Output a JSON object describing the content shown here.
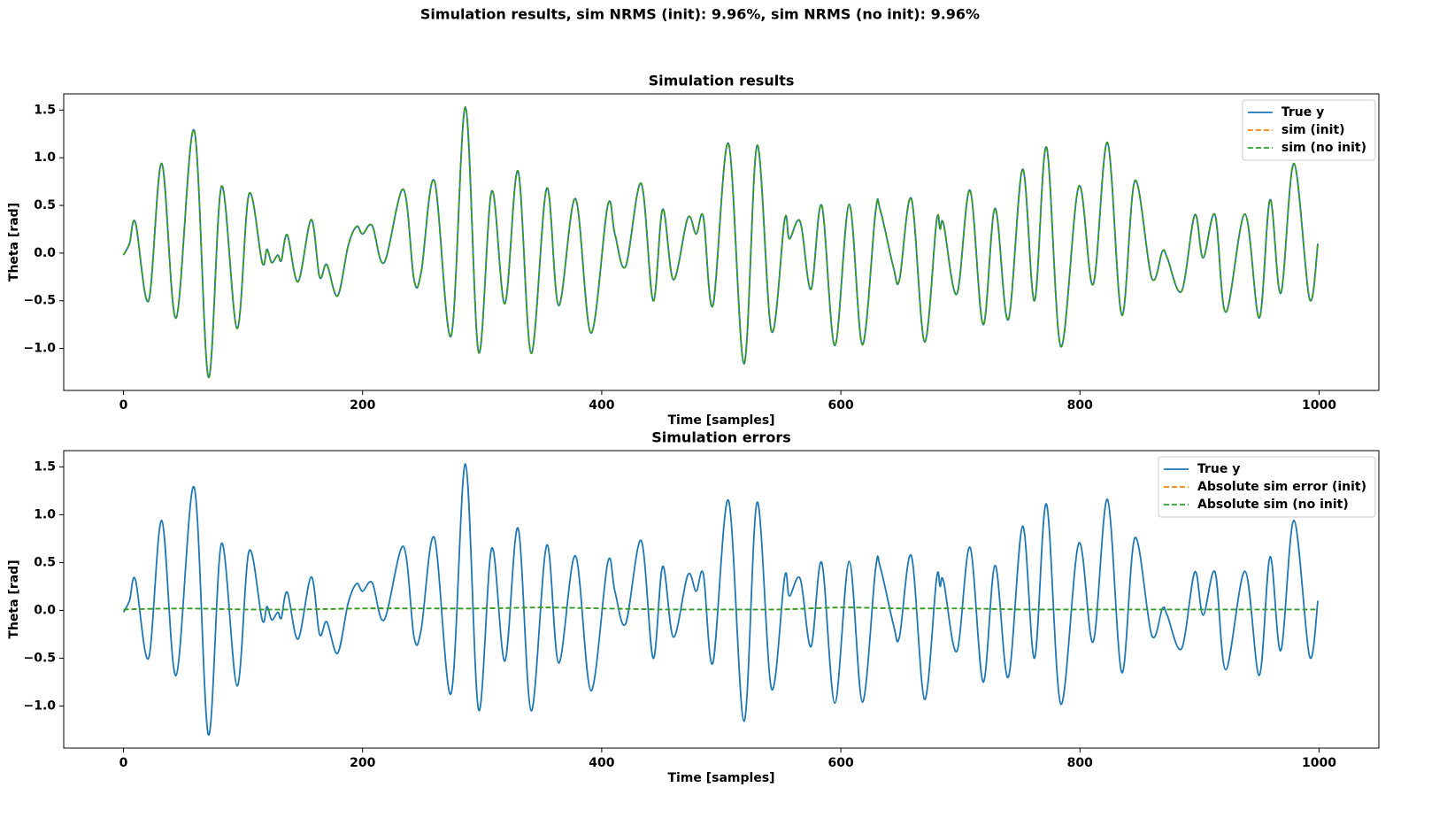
{
  "title": "Simulation results, sim NRMS (init): 9.96%, sim NRMS (no init): 9.96%",
  "chart_data": [
    {
      "type": "line",
      "title": "Simulation results",
      "xlabel": "Time [samples]",
      "ylabel": "Theta [rad]",
      "xlim": [
        -50,
        1050
      ],
      "ylim": [
        -1.44,
        1.67
      ],
      "xticks": [
        0,
        200,
        400,
        600,
        800,
        1000
      ],
      "yticks": [
        {
          "value": -1.0,
          "label": "−1.0"
        },
        {
          "value": -0.5,
          "label": "−0.5"
        },
        {
          "value": 0,
          "label": "0.0"
        },
        {
          "value": 0.5,
          "label": "0.5"
        },
        {
          "value": 1.0,
          "label": "1.0"
        },
        {
          "value": 1.5,
          "label": "1.5"
        }
      ],
      "legend": "upper right",
      "x": [
        0,
        5,
        10,
        21,
        32,
        44,
        59,
        71,
        82,
        95,
        105,
        116,
        120,
        124,
        129,
        132,
        137,
        146,
        157,
        164,
        170,
        179,
        188,
        195,
        200,
        208,
        218,
        234,
        243,
        249,
        260,
        274,
        286,
        297,
        308,
        319,
        330,
        341,
        354,
        364,
        378,
        391,
        405,
        411,
        420,
        433,
        443,
        451,
        460,
        472,
        479,
        485,
        493,
        506,
        519,
        530,
        542,
        553,
        557,
        566,
        575,
        584,
        595,
        607,
        618,
        629,
        633,
        644,
        649,
        659,
        670,
        680,
        683,
        686,
        697,
        708,
        719,
        729,
        740,
        752,
        762,
        772,
        784,
        799,
        811,
        823,
        835,
        846,
        860,
        869,
        873,
        885,
        896,
        903,
        913,
        922,
        938,
        950,
        959,
        968,
        979,
        992,
        999
      ],
      "series": [
        {
          "name": "True y",
          "color": "#1f77b4",
          "dash": false,
          "values": [
            -0.02,
            0.1,
            0.32,
            -0.5,
            0.94,
            -0.68,
            1.29,
            -1.3,
            0.7,
            -0.79,
            0.62,
            -0.1,
            0.04,
            -0.1,
            -0.02,
            -0.08,
            0.19,
            -0.3,
            0.35,
            -0.25,
            -0.12,
            -0.45,
            0.08,
            0.28,
            0.2,
            0.29,
            -0.1,
            0.67,
            -0.28,
            -0.2,
            0.76,
            -0.87,
            1.53,
            -1.04,
            0.65,
            -0.53,
            0.86,
            -1.05,
            0.68,
            -0.55,
            0.57,
            -0.84,
            0.5,
            0.2,
            -0.14,
            0.73,
            -0.5,
            0.46,
            -0.28,
            0.37,
            0.2,
            0.38,
            -0.55,
            1.15,
            -1.16,
            1.13,
            -0.82,
            0.35,
            0.15,
            0.33,
            -0.38,
            0.5,
            -0.97,
            0.51,
            -0.96,
            0.43,
            0.45,
            -0.15,
            -0.28,
            0.57,
            -0.93,
            0.33,
            0.25,
            0.3,
            -0.43,
            0.66,
            -0.75,
            0.47,
            -0.7,
            0.88,
            -0.5,
            1.11,
            -0.98,
            0.7,
            -0.33,
            1.16,
            -0.65,
            0.76,
            -0.26,
            0.02,
            -0.05,
            -0.4,
            0.4,
            -0.05,
            0.4,
            -0.62,
            0.41,
            -0.68,
            0.56,
            -0.42,
            0.94,
            -0.48,
            0.1
          ]
        },
        {
          "name": "sim (init)",
          "color": "#ff7f0e",
          "dash": true,
          "values": [
            -0.02,
            0.1,
            0.32,
            -0.5,
            0.94,
            -0.68,
            1.29,
            -1.3,
            0.7,
            -0.79,
            0.62,
            -0.1,
            0.04,
            -0.1,
            -0.02,
            -0.08,
            0.19,
            -0.3,
            0.35,
            -0.25,
            -0.12,
            -0.45,
            0.08,
            0.28,
            0.2,
            0.29,
            -0.1,
            0.67,
            -0.28,
            -0.2,
            0.76,
            -0.87,
            1.53,
            -1.04,
            0.65,
            -0.53,
            0.86,
            -1.05,
            0.68,
            -0.55,
            0.57,
            -0.84,
            0.5,
            0.2,
            -0.14,
            0.73,
            -0.5,
            0.46,
            -0.28,
            0.37,
            0.2,
            0.38,
            -0.55,
            1.15,
            -1.16,
            1.13,
            -0.82,
            0.35,
            0.15,
            0.33,
            -0.38,
            0.5,
            -0.97,
            0.51,
            -0.96,
            0.43,
            0.45,
            -0.15,
            -0.28,
            0.57,
            -0.93,
            0.33,
            0.25,
            0.3,
            -0.43,
            0.66,
            -0.75,
            0.47,
            -0.7,
            0.88,
            -0.5,
            1.11,
            -0.98,
            0.7,
            -0.33,
            1.16,
            -0.65,
            0.76,
            -0.26,
            0.02,
            -0.05,
            -0.4,
            0.4,
            -0.05,
            0.4,
            -0.62,
            0.41,
            -0.68,
            0.56,
            -0.42,
            0.94,
            -0.48,
            0.1
          ]
        },
        {
          "name": "sim (no init)",
          "color": "#2ca02c",
          "dash": true,
          "values": [
            -0.02,
            0.1,
            0.32,
            -0.5,
            0.94,
            -0.68,
            1.29,
            -1.3,
            0.7,
            -0.79,
            0.62,
            -0.1,
            0.04,
            -0.1,
            -0.02,
            -0.08,
            0.19,
            -0.3,
            0.35,
            -0.25,
            -0.12,
            -0.45,
            0.08,
            0.28,
            0.2,
            0.29,
            -0.1,
            0.67,
            -0.28,
            -0.2,
            0.76,
            -0.87,
            1.53,
            -1.04,
            0.65,
            -0.53,
            0.86,
            -1.05,
            0.68,
            -0.55,
            0.57,
            -0.84,
            0.5,
            0.2,
            -0.14,
            0.73,
            -0.5,
            0.46,
            -0.28,
            0.37,
            0.2,
            0.38,
            -0.55,
            1.15,
            -1.16,
            1.13,
            -0.82,
            0.35,
            0.15,
            0.33,
            -0.38,
            0.5,
            -0.97,
            0.51,
            -0.96,
            0.43,
            0.45,
            -0.15,
            -0.28,
            0.57,
            -0.93,
            0.33,
            0.25,
            0.3,
            -0.43,
            0.66,
            -0.75,
            0.47,
            -0.7,
            0.88,
            -0.5,
            1.11,
            -0.98,
            0.7,
            -0.33,
            1.16,
            -0.65,
            0.76,
            -0.26,
            0.02,
            -0.05,
            -0.4,
            0.4,
            -0.05,
            0.4,
            -0.62,
            0.41,
            -0.68,
            0.56,
            -0.42,
            0.94,
            -0.48,
            0.1
          ]
        }
      ]
    },
    {
      "type": "line",
      "title": "Simulation errors",
      "xlabel": "Time [samples]",
      "ylabel": "Theta [rad]",
      "xlim": [
        -50,
        1050
      ],
      "ylim": [
        -1.44,
        1.67
      ],
      "xticks": [
        0,
        200,
        400,
        600,
        800,
        1000
      ],
      "yticks": [
        {
          "value": -1.0,
          "label": "−1.0"
        },
        {
          "value": -0.5,
          "label": "−0.5"
        },
        {
          "value": 0,
          "label": "0.0"
        },
        {
          "value": 0.5,
          "label": "0.5"
        },
        {
          "value": 1.0,
          "label": "1.0"
        },
        {
          "value": 1.5,
          "label": "1.5"
        }
      ],
      "legend": "upper right",
      "x": [
        0,
        5,
        10,
        21,
        32,
        44,
        59,
        71,
        82,
        95,
        105,
        116,
        120,
        124,
        129,
        132,
        137,
        146,
        157,
        164,
        170,
        179,
        188,
        195,
        200,
        208,
        218,
        234,
        243,
        249,
        260,
        274,
        286,
        297,
        308,
        319,
        330,
        341,
        354,
        364,
        378,
        391,
        405,
        411,
        420,
        433,
        443,
        451,
        460,
        472,
        479,
        485,
        493,
        506,
        519,
        530,
        542,
        553,
        557,
        566,
        575,
        584,
        595,
        607,
        618,
        629,
        633,
        644,
        649,
        659,
        670,
        680,
        683,
        686,
        697,
        708,
        719,
        729,
        740,
        752,
        762,
        772,
        784,
        799,
        811,
        823,
        835,
        846,
        860,
        869,
        873,
        885,
        896,
        903,
        913,
        922,
        938,
        950,
        959,
        968,
        979,
        992,
        999
      ],
      "series": [
        {
          "name": "True y",
          "color": "#1f77b4",
          "dash": false,
          "values": [
            -0.02,
            0.1,
            0.32,
            -0.5,
            0.94,
            -0.68,
            1.29,
            -1.3,
            0.7,
            -0.79,
            0.62,
            -0.1,
            0.04,
            -0.1,
            -0.02,
            -0.08,
            0.19,
            -0.3,
            0.35,
            -0.25,
            -0.12,
            -0.45,
            0.08,
            0.28,
            0.2,
            0.29,
            -0.1,
            0.67,
            -0.28,
            -0.2,
            0.76,
            -0.87,
            1.53,
            -1.04,
            0.65,
            -0.53,
            0.86,
            -1.05,
            0.68,
            -0.55,
            0.57,
            -0.84,
            0.5,
            0.2,
            -0.14,
            0.73,
            -0.5,
            0.46,
            -0.28,
            0.37,
            0.2,
            0.38,
            -0.55,
            1.15,
            -1.16,
            1.13,
            -0.82,
            0.35,
            0.15,
            0.33,
            -0.38,
            0.5,
            -0.97,
            0.51,
            -0.96,
            0.43,
            0.45,
            -0.15,
            -0.28,
            0.57,
            -0.93,
            0.33,
            0.25,
            0.3,
            -0.43,
            0.66,
            -0.75,
            0.47,
            -0.7,
            0.88,
            -0.5,
            1.11,
            -0.98,
            0.7,
            -0.33,
            1.16,
            -0.65,
            0.76,
            -0.26,
            0.02,
            -0.05,
            -0.4,
            0.4,
            -0.05,
            0.4,
            -0.62,
            0.41,
            -0.68,
            0.56,
            -0.42,
            0.94,
            -0.48,
            0.1
          ]
        },
        {
          "name": "Absolute sim error (init)",
          "color": "#ff7f0e",
          "dash": true,
          "x": [
            0,
            50,
            100,
            150,
            200,
            250,
            300,
            350,
            400,
            450,
            500,
            550,
            600,
            650,
            700,
            750,
            800,
            850,
            900,
            950,
            999
          ],
          "values": [
            0.01,
            0.02,
            0.01,
            0.01,
            0.02,
            0.02,
            0.02,
            0.03,
            0.02,
            0.01,
            0.01,
            0.01,
            0.03,
            0.02,
            0.02,
            0.01,
            0.01,
            0.01,
            0.01,
            0.01,
            0.01
          ]
        },
        {
          "name": "Absolute sim (no init)",
          "color": "#2ca02c",
          "dash": true,
          "x": [
            0,
            50,
            100,
            150,
            200,
            250,
            300,
            350,
            400,
            450,
            500,
            550,
            600,
            650,
            700,
            750,
            800,
            850,
            900,
            950,
            999
          ],
          "values": [
            0.01,
            0.02,
            0.01,
            0.01,
            0.02,
            0.02,
            0.02,
            0.03,
            0.02,
            0.01,
            0.01,
            0.01,
            0.03,
            0.02,
            0.02,
            0.01,
            0.01,
            0.01,
            0.01,
            0.01,
            0.01
          ]
        }
      ]
    }
  ]
}
